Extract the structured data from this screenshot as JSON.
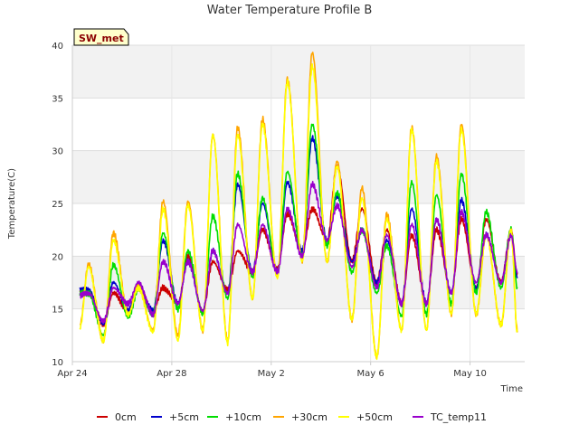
{
  "chart_data": {
    "type": "line",
    "title": "Water Temperature Profile B",
    "badge": "SW_met",
    "xlabel": "Time",
    "ylabel": "Temperature(C)",
    "x_ticks": [
      {
        "day": 0,
        "label": "Apr 24"
      },
      {
        "day": 4,
        "label": "Apr 28"
      },
      {
        "day": 8,
        "label": "May 2"
      },
      {
        "day": 12,
        "label": "May 6"
      },
      {
        "day": 16,
        "label": "May 10"
      }
    ],
    "y_ticks": [
      10,
      15,
      20,
      25,
      30,
      35,
      40
    ],
    "xlim": [
      0,
      18.2
    ],
    "ylim": [
      10,
      40
    ],
    "grid": true,
    "legend_position": "bottom",
    "series": [
      {
        "name": "0cm",
        "color": "#cc0000",
        "mins": [
          14.8,
          13.6,
          14.8,
          14.8,
          15.5,
          14.8,
          16.8,
          18.5,
          18.8,
          20.5,
          21.5,
          19.5,
          17.5,
          15.5,
          15.5,
          16.5,
          17.0,
          17.5,
          17.5
        ],
        "maxs": [
          16.8,
          16.5,
          17.0,
          17.0,
          20.0,
          19.5,
          20.5,
          22.5,
          24.0,
          24.5,
          28.5,
          24.5,
          22.5,
          22.0,
          22.5,
          23.5,
          23.5,
          22.5
        ],
        "start": 16.8,
        "end": 18.2
      },
      {
        "name": "+5cm",
        "color": "#0000cc",
        "mins": [
          14.8,
          13.6,
          14.8,
          14.8,
          15.5,
          14.8,
          16.5,
          18.5,
          18.5,
          20.5,
          21.5,
          19.5,
          17.5,
          15.5,
          15.5,
          16.5,
          17.0,
          17.5,
          17.5
        ],
        "maxs": [
          16.8,
          17.5,
          17.0,
          21.5,
          19.5,
          20.5,
          26.8,
          25.0,
          27.0,
          31.2,
          25.8,
          22.5,
          21.5,
          24.5,
          23.5,
          25.3,
          22.0,
          22.0
        ],
        "start": 16.8,
        "end": 18.0
      },
      {
        "name": "+10cm",
        "color": "#00dd00",
        "mins": [
          13.2,
          12.5,
          14.2,
          14.5,
          15.0,
          14.5,
          16.0,
          18.0,
          18.5,
          20.0,
          21.0,
          18.5,
          16.5,
          14.3,
          14.5,
          15.5,
          16.5,
          17.0,
          17.0
        ],
        "maxs": [
          16.5,
          19.2,
          16.8,
          22.2,
          20.5,
          23.8,
          27.8,
          25.5,
          28.0,
          32.5,
          26.0,
          22.5,
          21.0,
          27.0,
          25.8,
          27.8,
          24.2,
          22.5
        ],
        "start": 16.5,
        "end": 17.0
      },
      {
        "name": "+30cm",
        "color": "#ffa500",
        "mins": [
          12.8,
          12.0,
          14.5,
          13.0,
          12.5,
          13.0,
          12.0,
          16.0,
          18.0,
          19.5,
          19.5,
          14.0,
          10.5,
          13.0,
          13.0,
          14.5,
          14.5,
          13.5,
          13.0
        ],
        "maxs": [
          19.2,
          22.2,
          17.2,
          25.2,
          25.2,
          31.5,
          32.2,
          33.0,
          36.8,
          39.3,
          29.0,
          26.5,
          24.0,
          32.2,
          29.5,
          32.5,
          22.0,
          22.5
        ],
        "start": 13.5,
        "end": 13.0
      },
      {
        "name": "+50cm",
        "color": "#ffff00",
        "mins": [
          12.8,
          12.0,
          14.5,
          12.8,
          12.0,
          13.0,
          11.8,
          16.0,
          18.0,
          19.5,
          19.5,
          14.0,
          10.5,
          13.0,
          13.0,
          14.5,
          14.5,
          13.5,
          13.0
        ],
        "maxs": [
          19.0,
          21.5,
          17.0,
          24.5,
          24.8,
          31.5,
          31.5,
          32.5,
          36.5,
          38.0,
          28.5,
          25.5,
          23.5,
          32.0,
          29.0,
          32.0,
          22.0,
          22.5
        ],
        "start": 13.2,
        "end": 12.8
      },
      {
        "name": "TC_temp11",
        "color": "#9900cc",
        "mins": [
          15.8,
          13.8,
          15.5,
          14.5,
          15.5,
          14.8,
          16.5,
          18.5,
          18.5,
          20.0,
          21.5,
          19.0,
          17.0,
          15.5,
          15.5,
          16.5,
          17.5,
          17.5,
          17.5
        ],
        "maxs": [
          16.5,
          17.0,
          17.5,
          19.5,
          19.5,
          20.5,
          23.0,
          23.0,
          24.5,
          26.8,
          24.8,
          22.5,
          22.0,
          23.0,
          23.5,
          24.2,
          22.0,
          22.0
        ],
        "start": 16.3,
        "end": 18.5
      }
    ]
  }
}
